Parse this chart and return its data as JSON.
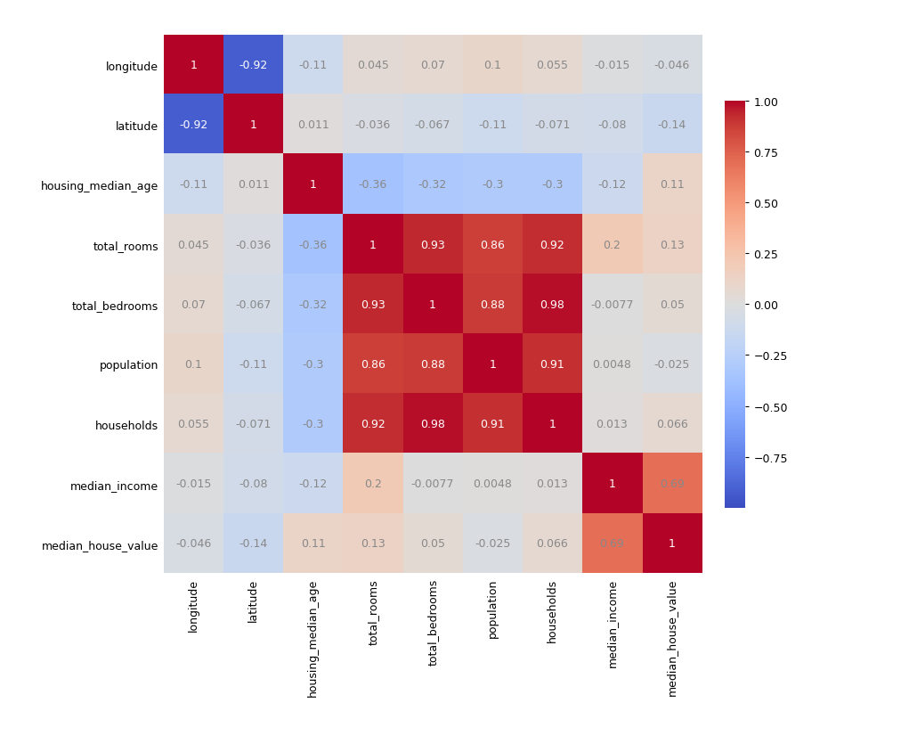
{
  "labels": [
    "longitude",
    "latitude",
    "housing_median_age",
    "total_rooms",
    "total_bedrooms",
    "population",
    "households",
    "median_income",
    "median_house_value"
  ],
  "matrix": [
    [
      1,
      -0.92,
      -0.11,
      0.045,
      0.07,
      0.1,
      0.055,
      -0.015,
      -0.046
    ],
    [
      -0.92,
      1,
      0.011,
      -0.036,
      -0.067,
      -0.11,
      -0.071,
      -0.08,
      -0.14
    ],
    [
      -0.11,
      0.011,
      1,
      -0.36,
      -0.32,
      -0.3,
      -0.3,
      -0.12,
      0.11
    ],
    [
      0.045,
      -0.036,
      -0.36,
      1,
      0.93,
      0.86,
      0.92,
      0.2,
      0.13
    ],
    [
      0.07,
      -0.067,
      -0.32,
      0.93,
      1,
      0.88,
      0.98,
      -0.0077,
      0.05
    ],
    [
      0.1,
      -0.11,
      -0.3,
      0.86,
      0.88,
      1,
      0.91,
      0.0048,
      -0.025
    ],
    [
      0.055,
      -0.071,
      -0.3,
      0.92,
      0.98,
      0.91,
      1,
      0.013,
      0.066
    ],
    [
      -0.015,
      -0.08,
      -0.12,
      0.2,
      -0.0077,
      0.0048,
      0.013,
      1,
      0.69
    ],
    [
      -0.046,
      -0.14,
      0.11,
      0.13,
      0.05,
      -0.025,
      0.066,
      0.69,
      1
    ]
  ],
  "cell_text": [
    [
      "1",
      "-0.92",
      "-0.11",
      "0.045",
      "0.07",
      "0.1",
      "0.055",
      "-0.015",
      "-0.046"
    ],
    [
      "-0.92",
      "1",
      "0.011",
      "-0.036",
      "-0.067",
      "-0.11",
      "-0.071",
      "-0.08",
      "-0.14"
    ],
    [
      "-0.11",
      "0.011",
      "1",
      "-0.36",
      "-0.32",
      "-0.3",
      "-0.3",
      "-0.12",
      "0.11"
    ],
    [
      "0.045",
      "-0.036",
      "-0.36",
      "1",
      "0.93",
      "0.86",
      "0.92",
      "0.2",
      "0.13"
    ],
    [
      "0.07",
      "-0.067",
      "-0.32",
      "0.93",
      "1",
      "0.88",
      "0.98",
      "-0.0077",
      "0.05"
    ],
    [
      "0.1",
      "-0.11",
      "-0.3",
      "0.86",
      "0.88",
      "1",
      "0.91",
      "0.0048",
      "-0.025"
    ],
    [
      "0.055",
      "-0.071",
      "-0.3",
      "0.92",
      "0.98",
      "0.91",
      "1",
      "0.013",
      "0.066"
    ],
    [
      "-0.015",
      "-0.08",
      "-0.12",
      "0.2",
      "-0.0077",
      "0.0048",
      "0.013",
      "1",
      "0.69"
    ],
    [
      "-0.046",
      "-0.14",
      "0.11",
      "0.13",
      "0.05",
      "-0.025",
      "0.066",
      "0.69",
      "1"
    ]
  ],
  "vmin": -1.0,
  "vmax": 1.0,
  "cmap": "coolwarm",
  "background_color": "#ffffff",
  "text_color_light": "white",
  "text_color_dark": "#888888",
  "font_size_annot": 9,
  "font_size_tick": 9,
  "colorbar_ticks": [
    1.0,
    0.75,
    0.5,
    0.25,
    0.0,
    -0.25,
    -0.5,
    -0.75
  ]
}
